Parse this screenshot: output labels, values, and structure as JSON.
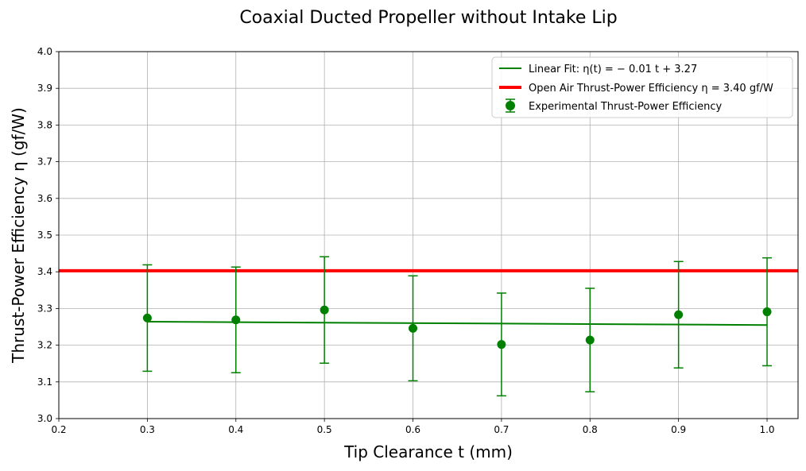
{
  "chart_data": {
    "type": "scatter",
    "title": "Coaxial Ducted Propeller without Intake Lip",
    "xlabel": "Tip Clearance t (mm)",
    "ylabel": "Thrust-Power Efficiency η (gf/W)",
    "xlim": [
      0.2,
      1.035
    ],
    "ylim": [
      3.0,
      4.0
    ],
    "x_ticks": [
      "0.2",
      "0.3",
      "0.4",
      "0.5",
      "0.6",
      "0.7",
      "0.8",
      "0.9",
      "1.0"
    ],
    "y_ticks": [
      "3.0",
      "3.1",
      "3.2",
      "3.3",
      "3.4",
      "3.5",
      "3.6",
      "3.7",
      "3.8",
      "3.9",
      "4.0"
    ],
    "grid": true,
    "legend_position": "top-right",
    "series": [
      {
        "name": "Experimental Thrust-Power Efficiency",
        "kind": "errorbar",
        "color": "#008000",
        "x": [
          0.3,
          0.4,
          0.5,
          0.6,
          0.7,
          0.8,
          0.9,
          1.0
        ],
        "y": [
          3.274,
          3.269,
          3.296,
          3.246,
          3.202,
          3.214,
          3.283,
          3.291
        ],
        "yerr": [
          0.145,
          0.144,
          0.145,
          0.143,
          0.14,
          0.141,
          0.145,
          0.147
        ]
      },
      {
        "name": "Linear Fit: η(t) = − 0.01 t + 3.27",
        "kind": "line",
        "color": "#008000",
        "x": [
          0.3,
          1.0
        ],
        "y": [
          3.264,
          3.255
        ]
      },
      {
        "name": "Open Air Thrust-Power Efficiency η = 3.40 gf/W",
        "kind": "hline",
        "color": "#ff0000",
        "y": 3.403
      }
    ]
  }
}
